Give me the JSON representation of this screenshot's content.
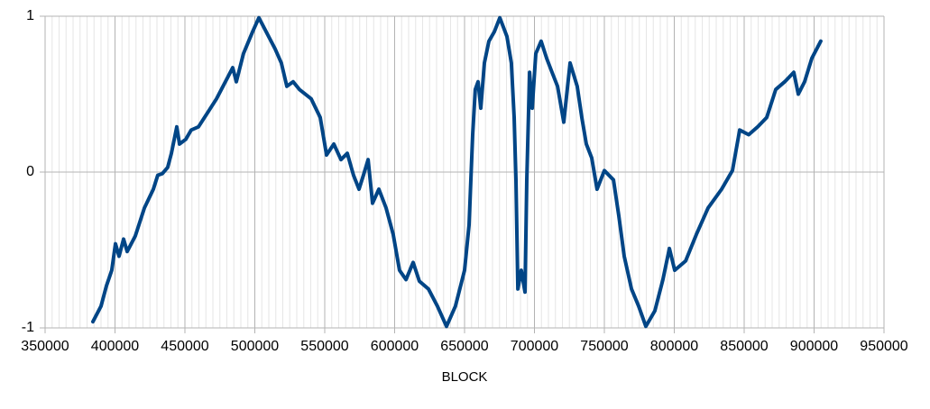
{
  "chart_data": {
    "type": "line",
    "x_label": "BLOCK",
    "x": [
      384200,
      390000,
      393900,
      397700,
      400300,
      402900,
      406100,
      408700,
      414500,
      421000,
      427400,
      430600,
      433900,
      437700,
      440300,
      444200,
      446100,
      450600,
      454500,
      459700,
      466100,
      472600,
      479000,
      484200,
      486800,
      491900,
      498400,
      502900,
      508100,
      514500,
      519000,
      522900,
      527400,
      531900,
      540300,
      546800,
      551300,
      556500,
      561600,
      566100,
      570600,
      574500,
      577700,
      581000,
      584200,
      588700,
      593900,
      599000,
      603500,
      608100,
      613200,
      617700,
      624200,
      630600,
      637100,
      643500,
      650000,
      653200,
      655800,
      657700,
      659700,
      661600,
      664200,
      667400,
      671300,
      675200,
      680300,
      683500,
      685500,
      686800,
      688100,
      690600,
      693200,
      694500,
      696500,
      698400,
      701000,
      704800,
      708700,
      712600,
      716500,
      721000,
      725500,
      730600,
      733900,
      737100,
      741000,
      744800,
      750000,
      756500,
      760300,
      764200,
      769400,
      774500,
      779700,
      786100,
      791900,
      796500,
      800300,
      808100,
      815800,
      824200,
      833900,
      841600,
      846800,
      853200,
      859700,
      866100,
      872600,
      879000,
      885500,
      888700,
      893200,
      898400,
      904800
    ],
    "series": [
      {
        "color": "#004586",
        "values": [
          -0.96,
          -0.86,
          -0.73,
          -0.63,
          -0.46,
          -0.54,
          -0.43,
          -0.51,
          -0.41,
          -0.23,
          -0.11,
          -0.02,
          -0.01,
          0.03,
          0.12,
          0.29,
          0.18,
          0.21,
          0.27,
          0.29,
          0.38,
          0.47,
          0.58,
          0.67,
          0.58,
          0.76,
          0.9,
          0.99,
          0.9,
          0.79,
          0.7,
          0.55,
          0.58,
          0.53,
          0.47,
          0.35,
          0.11,
          0.18,
          0.08,
          0.12,
          -0.02,
          -0.11,
          -0.02,
          0.08,
          -0.2,
          -0.11,
          -0.23,
          -0.4,
          -0.63,
          -0.69,
          -0.58,
          -0.7,
          -0.75,
          -0.86,
          -0.99,
          -0.86,
          -0.63,
          -0.34,
          0.24,
          0.53,
          0.58,
          0.41,
          0.7,
          0.84,
          0.9,
          0.99,
          0.87,
          0.7,
          0.35,
          -0.05,
          -0.75,
          -0.63,
          -0.77,
          -0.05,
          0.64,
          0.41,
          0.76,
          0.84,
          0.73,
          0.64,
          0.55,
          0.32,
          0.7,
          0.55,
          0.35,
          0.18,
          0.09,
          -0.11,
          0.01,
          -0.05,
          -0.28,
          -0.54,
          -0.75,
          -0.86,
          -0.99,
          -0.89,
          -0.69,
          -0.49,
          -0.63,
          -0.57,
          -0.4,
          -0.23,
          -0.11,
          0.01,
          0.27,
          0.24,
          0.29,
          0.35,
          0.53,
          0.58,
          0.64,
          0.5,
          0.58,
          0.73,
          0.84
        ]
      }
    ],
    "xlim": [
      350000,
      950000
    ],
    "ylim": [
      -1,
      1
    ],
    "xticks": [
      350000,
      400000,
      450000,
      500000,
      550000,
      600000,
      650000,
      700000,
      750000,
      800000,
      850000,
      900000,
      950000
    ],
    "xminorticks": [
      355000,
      360000,
      365000,
      370000,
      375000,
      380000,
      385000,
      390000,
      395000,
      405000,
      410000,
      415000,
      420000,
      425000,
      430000,
      435000,
      440000,
      445000,
      455000,
      460000,
      465000,
      470000,
      475000,
      480000,
      485000,
      490000,
      495000,
      505000,
      510000,
      515000,
      520000,
      525000,
      530000,
      535000,
      540000,
      545000,
      555000,
      560000,
      565000,
      570000,
      575000,
      580000,
      585000,
      590000,
      595000,
      605000,
      610000,
      615000,
      620000,
      625000,
      630000,
      635000,
      640000,
      645000,
      655000,
      660000,
      665000,
      670000,
      675000,
      680000,
      685000,
      690000,
      695000,
      705000,
      710000,
      715000,
      720000,
      725000,
      730000,
      735000,
      740000,
      745000,
      755000,
      760000,
      765000,
      770000,
      775000,
      780000,
      785000,
      790000,
      795000,
      805000,
      810000,
      815000,
      820000,
      825000,
      830000,
      835000,
      840000,
      845000,
      855000,
      860000,
      865000,
      870000,
      875000,
      880000,
      885000,
      890000,
      895000,
      905000,
      910000,
      915000,
      920000,
      925000,
      930000,
      935000,
      940000,
      945000
    ],
    "yticks": [
      -1,
      0,
      1
    ],
    "grid": true
  }
}
